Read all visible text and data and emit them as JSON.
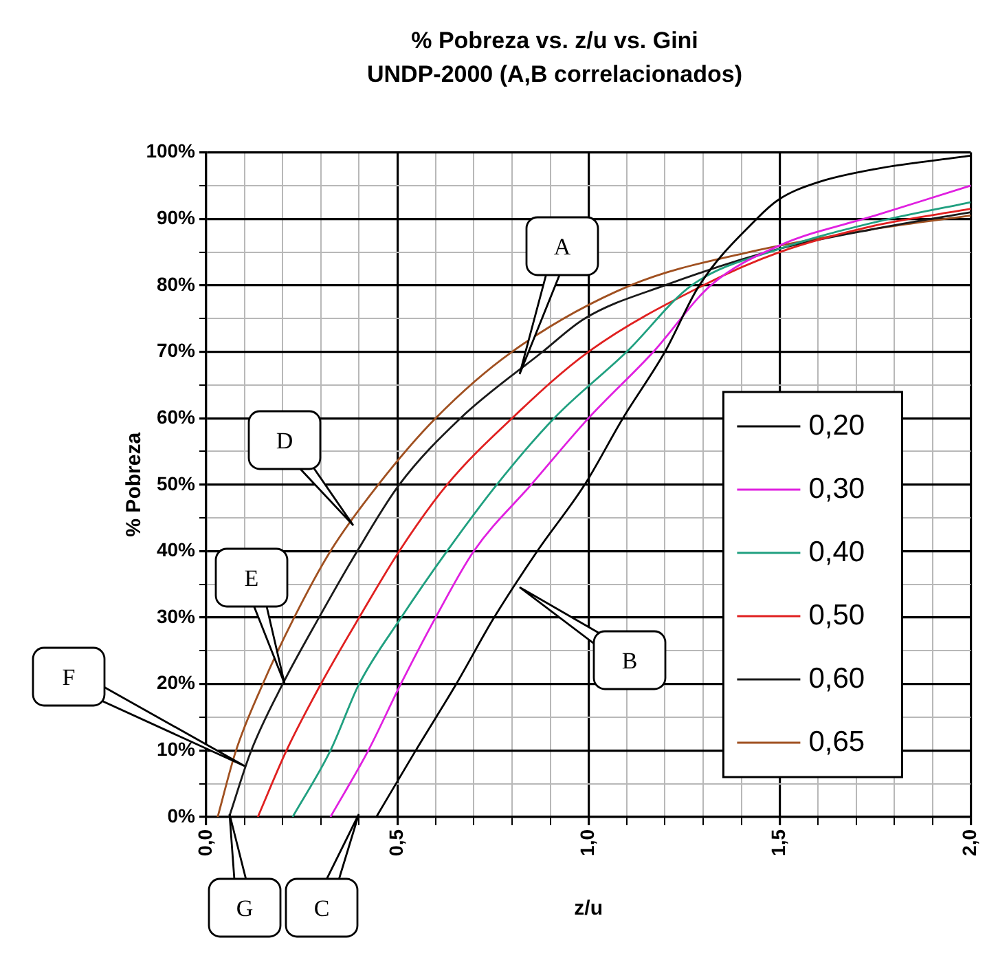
{
  "chart_data": {
    "type": "line",
    "title": "% Pobreza vs. z/u vs. Gini",
    "subtitle": "UNDP-2000 (A,B correlacionados)",
    "xlabel": "z/u",
    "ylabel": "% Pobreza",
    "xlim": [
      0,
      2
    ],
    "xticks": [
      {
        "value": 0,
        "label": "0,0"
      },
      {
        "value": 0.1,
        "label": null
      },
      {
        "value": 0.2,
        "label": null
      },
      {
        "value": 0.3,
        "label": null
      },
      {
        "value": 0.4,
        "label": null
      },
      {
        "value": 0.5,
        "label": "0,5"
      },
      {
        "value": 0.6,
        "label": null
      },
      {
        "value": 0.7,
        "label": null
      },
      {
        "value": 0.8,
        "label": null
      },
      {
        "value": 0.9,
        "label": null
      },
      {
        "value": 1,
        "label": "1,0"
      },
      {
        "value": 1.1,
        "label": null
      },
      {
        "value": 1.2,
        "label": null
      },
      {
        "value": 1.3,
        "label": null
      },
      {
        "value": 1.4,
        "label": null
      },
      {
        "value": 1.5,
        "label": "1,5"
      },
      {
        "value": 1.6,
        "label": null
      },
      {
        "value": 1.7,
        "label": null
      },
      {
        "value": 1.8,
        "label": null
      },
      {
        "value": 1.9,
        "label": null
      },
      {
        "value": 2,
        "label": "2,0"
      }
    ],
    "ylim": [
      0,
      100
    ],
    "yticks": [
      {
        "value": 0,
        "label": "0%"
      },
      {
        "value": 5,
        "label": null
      },
      {
        "value": 10,
        "label": "10%"
      },
      {
        "value": 15,
        "label": null
      },
      {
        "value": 20,
        "label": "20%"
      },
      {
        "value": 25,
        "label": null
      },
      {
        "value": 30,
        "label": "30%"
      },
      {
        "value": 35,
        "label": null
      },
      {
        "value": 40,
        "label": "40%"
      },
      {
        "value": 45,
        "label": null
      },
      {
        "value": 50,
        "label": "50%"
      },
      {
        "value": 55,
        "label": null
      },
      {
        "value": 60,
        "label": "60%"
      },
      {
        "value": 65,
        "label": null
      },
      {
        "value": 70,
        "label": "70%"
      },
      {
        "value": 75,
        "label": null
      },
      {
        "value": 80,
        "label": "80%"
      },
      {
        "value": 85,
        "label": null
      },
      {
        "value": 90,
        "label": "90%"
      },
      {
        "value": 95,
        "label": null
      },
      {
        "value": 100,
        "label": "100%"
      }
    ],
    "grid": true,
    "legend": "bottom right",
    "marker": "none",
    "line_style": "solid",
    "series": [
      {
        "name": "0,20",
        "color": "#000000",
        "x": [
          0.445,
          0.548,
          0.654,
          0.753,
          0.866,
          0.99,
          1.09,
          1.2,
          1.29,
          1.44,
          1.5,
          1.6,
          1.75,
          2.0
        ],
        "values": [
          0,
          10,
          20,
          30,
          40,
          50,
          60,
          70,
          80,
          90,
          93,
          95.5,
          97.5,
          99.5
        ]
      },
      {
        "name": "0,30",
        "color": "#e020e0",
        "x": [
          0.325,
          0.424,
          0.509,
          0.6,
          0.7,
          0.85,
          1.0,
          1.17,
          1.32,
          1.5,
          1.75,
          2.0
        ],
        "values": [
          0,
          10,
          20,
          30,
          40,
          50,
          60,
          70,
          80,
          86,
          90.5,
          95
        ]
      },
      {
        "name": "0,40",
        "color": "#20a080",
        "x": [
          0.226,
          0.325,
          0.4,
          0.51,
          0.63,
          0.76,
          0.91,
          1.1,
          1.27,
          1.5,
          1.75,
          2.0
        ],
        "values": [
          0,
          10,
          20,
          30,
          40,
          50,
          60,
          70,
          80,
          85.5,
          89.5,
          92.5
        ]
      },
      {
        "name": "0,50",
        "color": "#e02020",
        "x": [
          0.135,
          0.21,
          0.3,
          0.4,
          0.505,
          0.63,
          0.8,
          1.0,
          1.3,
          1.5,
          1.75,
          2.0
        ],
        "values": [
          0,
          10,
          20,
          30,
          40,
          50,
          60,
          70,
          80,
          85,
          89,
          91.5
        ]
      },
      {
        "name": "0,60",
        "color": "#1a1a1a",
        "x": [
          0.06,
          0.118,
          0.2,
          0.295,
          0.395,
          0.505,
          0.665,
          0.88,
          0.99,
          1.2,
          1.5,
          1.75,
          2.0
        ],
        "values": [
          0,
          10,
          20,
          30,
          40,
          50,
          60,
          70,
          75,
          80,
          85.5,
          88.5,
          91
        ]
      },
      {
        "name": "0,65",
        "color": "#a05020",
        "x": [
          0.03,
          0.078,
          0.148,
          0.23,
          0.325,
          0.45,
          0.6,
          0.8,
          1.11,
          1.42,
          1.75,
          2.0
        ],
        "values": [
          0,
          10,
          20,
          30,
          40,
          50,
          60,
          70,
          80,
          85,
          88.5,
          90.5
        ]
      }
    ],
    "annotations": [
      "A",
      "B",
      "C",
      "D",
      "E",
      "F",
      "G"
    ]
  }
}
